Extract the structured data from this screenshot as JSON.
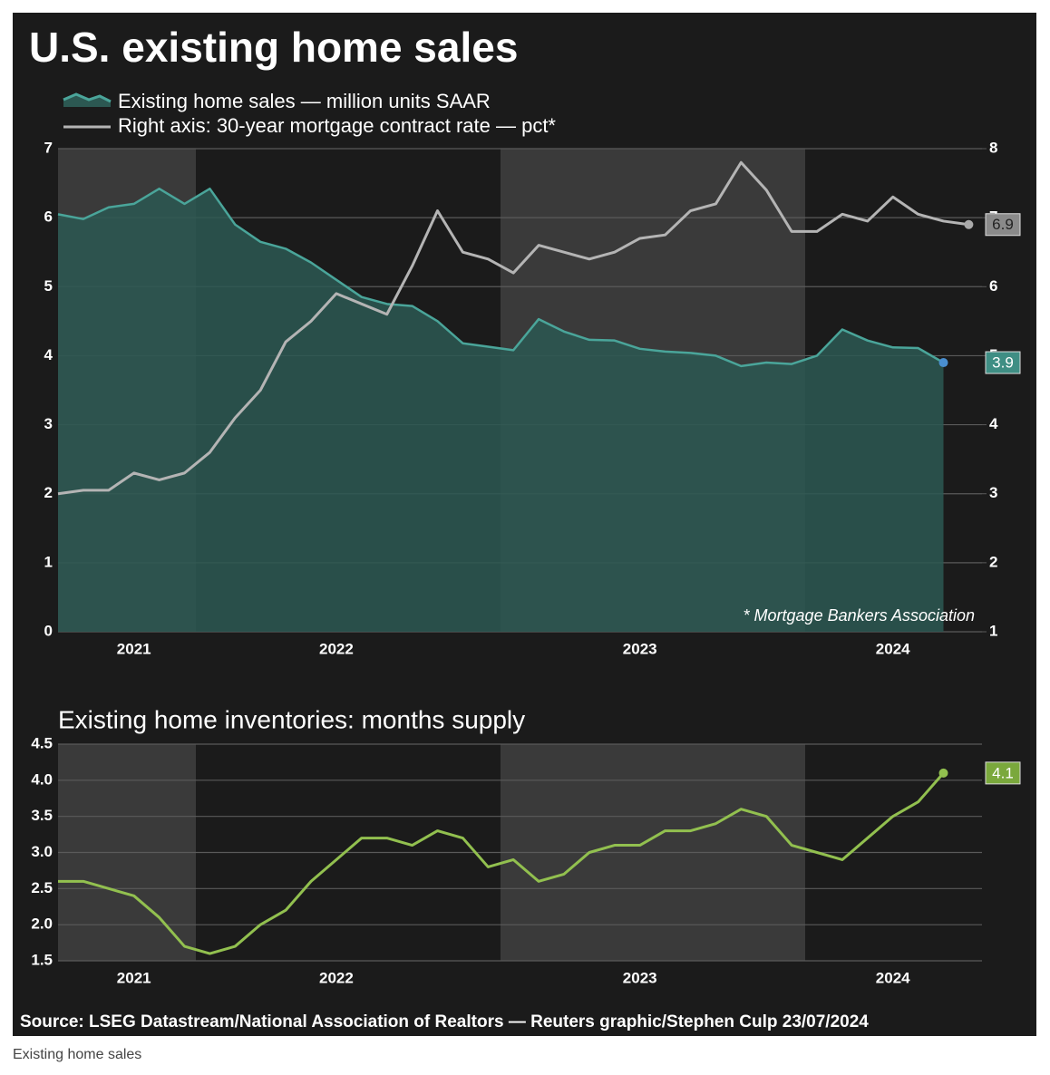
{
  "chart_data": [
    {
      "type": "area",
      "title": "U.S. existing home sales",
      "categories": [
        null,
        null,
        null,
        "2021",
        null,
        null,
        null,
        null,
        null,
        null,
        null,
        "2022",
        null,
        null,
        null,
        null,
        null,
        null,
        null,
        null,
        null,
        null,
        null,
        "2023",
        null,
        null,
        null,
        null,
        null,
        null,
        null,
        null,
        null,
        "2024",
        null,
        null,
        null
      ],
      "series": [
        {
          "name": "Existing home sales — million units SAAR",
          "type": "area",
          "color": "#4aa59a",
          "fill": "#2c5852",
          "values": [
            6.05,
            5.98,
            6.15,
            6.2,
            6.42,
            6.2,
            6.42,
            5.9,
            5.65,
            5.55,
            5.35,
            5.1,
            4.85,
            4.75,
            4.72,
            4.5,
            4.18,
            4.13,
            4.08,
            4.53,
            4.35,
            4.23,
            4.22,
            4.1,
            4.06,
            4.04,
            4.0,
            3.85,
            3.9,
            3.88,
            4.0,
            4.38,
            4.22,
            4.12,
            4.11,
            3.9,
            null
          ]
        },
        {
          "name": "Right axis: 30-year mortgage contract rate — pct*",
          "type": "line",
          "axis": "y2",
          "color": "#b4b4b4",
          "values": [
            3.0,
            3.05,
            3.05,
            3.3,
            3.2,
            3.3,
            3.6,
            4.1,
            4.5,
            5.2,
            5.5,
            5.9,
            5.75,
            5.6,
            6.3,
            7.1,
            6.5,
            6.4,
            6.2,
            6.6,
            6.5,
            6.4,
            6.5,
            6.7,
            6.75,
            7.1,
            7.2,
            7.8,
            7.4,
            6.8,
            6.8,
            7.05,
            6.95,
            7.3,
            7.05,
            6.95,
            6.9
          ]
        }
      ],
      "ylim": [
        0,
        7
      ],
      "yticks": [
        0,
        1,
        2,
        3,
        4,
        5,
        6,
        7
      ],
      "y2lim": [
        1,
        8
      ],
      "y2ticks": [
        1,
        2,
        3,
        4,
        5,
        6,
        7,
        8
      ],
      "grid": true,
      "note": "* Mortgage Bankers Association"
    },
    {
      "type": "line",
      "title": "Existing home inventories: months supply",
      "categories": [
        null,
        null,
        null,
        "2021",
        null,
        null,
        null,
        null,
        null,
        null,
        null,
        "2022",
        null,
        null,
        null,
        null,
        null,
        null,
        null,
        null,
        null,
        null,
        null,
        "2023",
        null,
        null,
        null,
        null,
        null,
        null,
        null,
        null,
        null,
        "2024",
        null,
        null,
        null
      ],
      "series": [
        {
          "name": null,
          "type": "line",
          "color": "#92c04f",
          "values": [
            2.6,
            2.6,
            2.5,
            2.4,
            2.1,
            1.7,
            1.6,
            1.7,
            2.0,
            2.2,
            2.6,
            2.9,
            3.2,
            3.2,
            3.1,
            3.3,
            3.2,
            2.8,
            2.9,
            2.6,
            2.7,
            3.0,
            3.1,
            3.1,
            3.3,
            3.3,
            3.4,
            3.6,
            3.5,
            3.1,
            3.0,
            2.9,
            3.2,
            3.5,
            3.7,
            4.1,
            null
          ]
        }
      ],
      "ylim": [
        1.5,
        4.5
      ],
      "yticks": [
        1.5,
        {
          "value": 2,
          "label": "2.0"
        },
        2.5,
        {
          "value": 3,
          "label": "3.0"
        },
        3.5,
        {
          "value": 4,
          "label": "4.0"
        },
        4.5
      ],
      "grid": true
    }
  ],
  "source": "Source: LSEG Datastream/National Association of Realtors  — Reuters graphic/Stephen Culp 23/07/2024",
  "caption": "Existing home sales"
}
